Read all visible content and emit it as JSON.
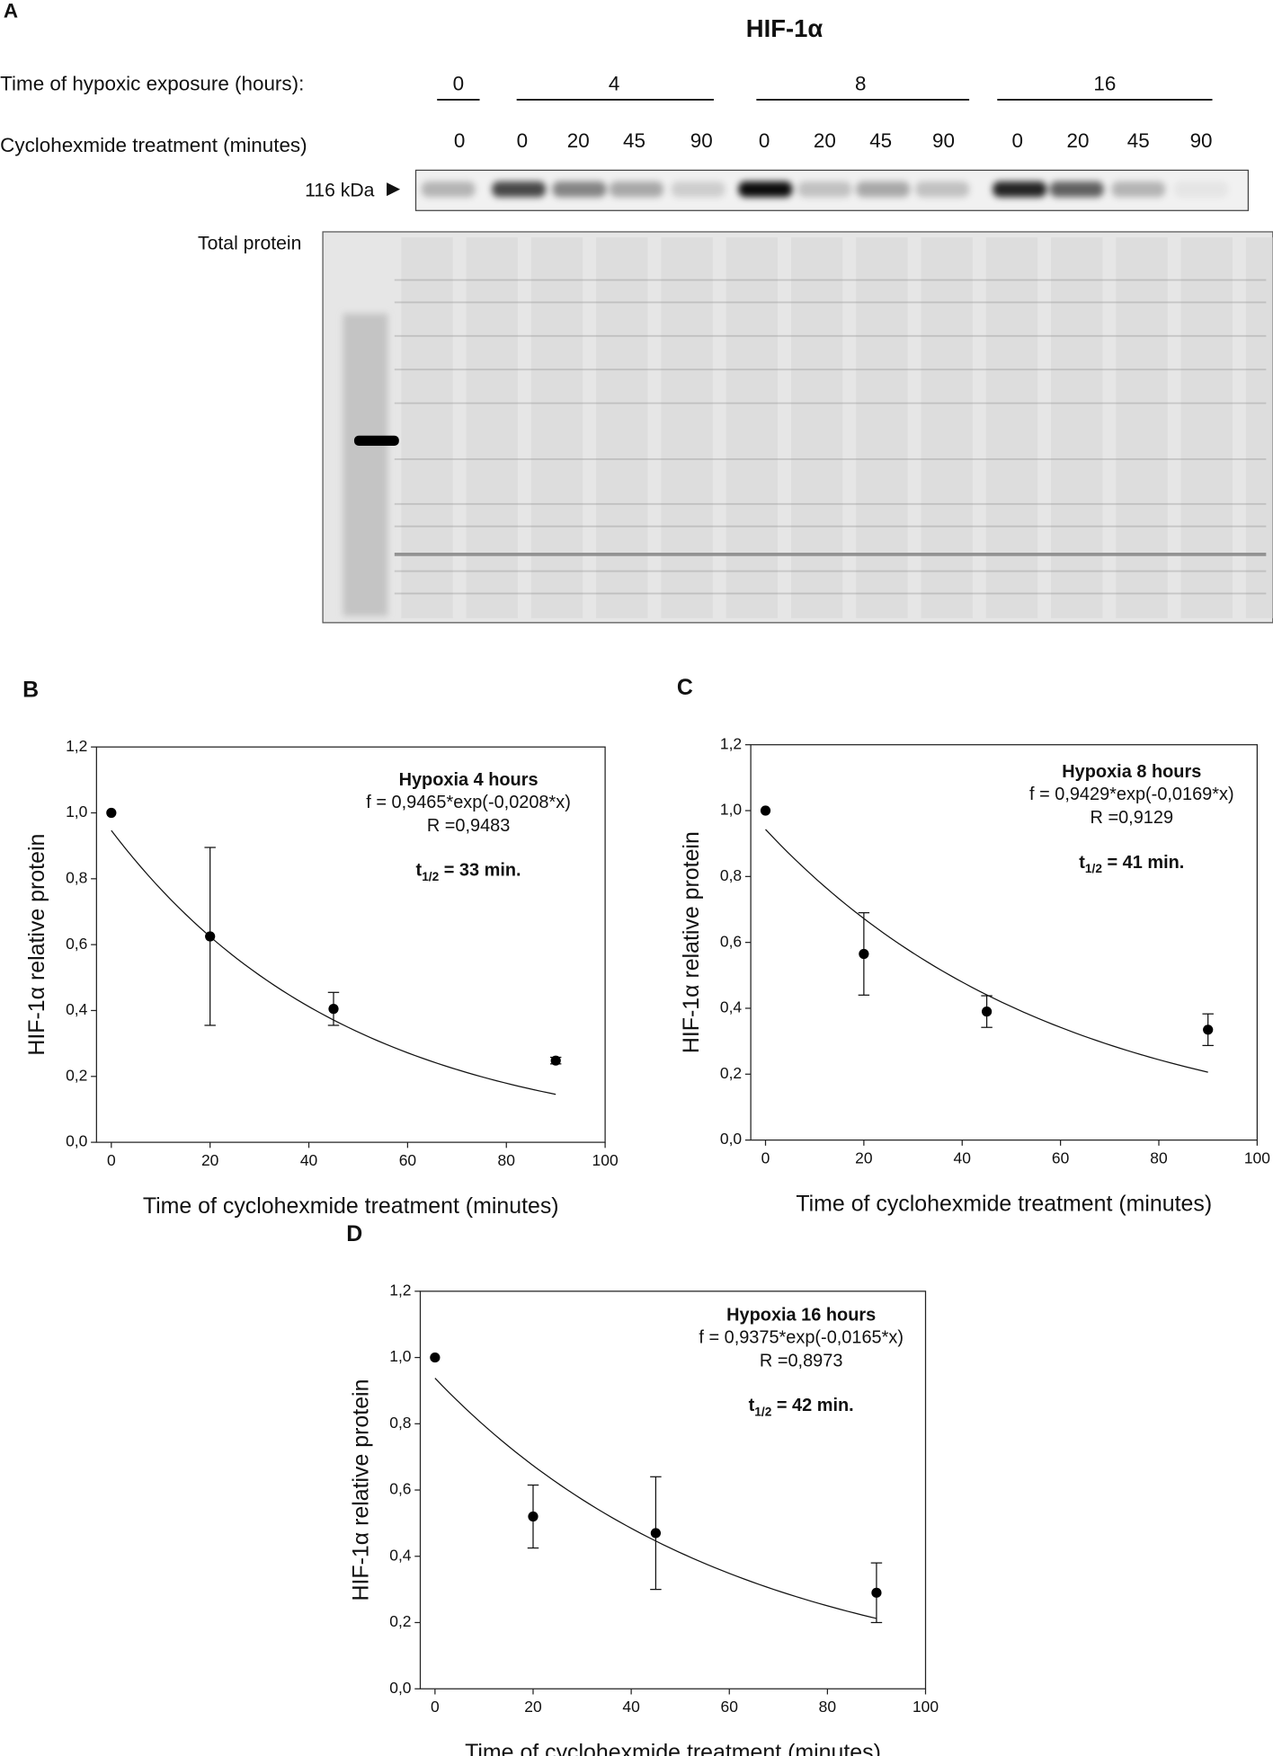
{
  "panel_a": {
    "label": "A",
    "title": "HIF-1α",
    "time_label": "Time of hypoxic exposure (hours):",
    "time_groups": [
      "0",
      "4",
      "8",
      "16"
    ],
    "chx_label": "Cyclohexmide treatment (minutes)",
    "chx_times": [
      "0",
      "0",
      "20",
      "45",
      "90",
      "0",
      "20",
      "45",
      "90",
      "0",
      "20",
      "45",
      "90"
    ],
    "marker": "116 kDa",
    "total_label": "Total protein"
  },
  "chart_data": [
    {
      "type": "scatter",
      "panel": "B",
      "xlabel": "Time of cyclohexmide treatment (minutes)",
      "ylabel": "HIF-1α relative protein",
      "xlim": [
        -3,
        100
      ],
      "ylim": [
        0,
        1.2
      ],
      "xticks": [
        0,
        20,
        40,
        60,
        80,
        100
      ],
      "yticks": [
        {
          "value": 0,
          "label": "0,0"
        },
        {
          "value": 0.2,
          "label": "0,2"
        },
        {
          "value": 0.4,
          "label": "0,4"
        },
        {
          "value": 0.6,
          "label": "0,6"
        },
        {
          "value": 0.8,
          "label": "0,8"
        },
        {
          "value": 1.0,
          "label": "1,0"
        },
        {
          "value": 1.2,
          "label": "1,2"
        }
      ],
      "x": [
        0,
        20,
        45,
        90
      ],
      "values": [
        1.0,
        0.625,
        0.405,
        0.248
      ],
      "errors": [
        null,
        0.27,
        0.05,
        0.01
      ],
      "color": "#000000",
      "fit": {
        "equation": "f = 0,9465*exp(-0,0208*x)",
        "a": 0.9465,
        "b": -0.0208
      },
      "annotation": {
        "title": "Hypoxia 4 hours",
        "r": "R =0,9483",
        "t_symbol": "t",
        "t_sub": "1/2",
        "t_text": " = 33 min."
      }
    },
    {
      "type": "scatter",
      "panel": "C",
      "xlabel": "Time of cyclohexmide treatment (minutes)",
      "ylabel": "HIF-1α relative protein",
      "xlim": [
        -3,
        100
      ],
      "ylim": [
        0,
        1.2
      ],
      "xticks": [
        0,
        20,
        40,
        60,
        80,
        100
      ],
      "yticks": [
        {
          "value": 0,
          "label": "0,0"
        },
        {
          "value": 0.2,
          "label": "0,2"
        },
        {
          "value": 0.4,
          "label": "0,4"
        },
        {
          "value": 0.6,
          "label": "0,6"
        },
        {
          "value": 0.8,
          "label": "0,8"
        },
        {
          "value": 1.0,
          "label": "1,0"
        },
        {
          "value": 1.2,
          "label": "1,2"
        }
      ],
      "x": [
        0,
        20,
        45,
        90
      ],
      "values": [
        1.0,
        0.565,
        0.39,
        0.335
      ],
      "errors": [
        null,
        0.125,
        0.048,
        0.048
      ],
      "color": "#000000",
      "fit": {
        "equation": "f = 0,9429*exp(-0,0169*x)",
        "a": 0.9429,
        "b": -0.0169
      },
      "annotation": {
        "title": "Hypoxia 8 hours",
        "r": "R =0,9129",
        "t_symbol": "t",
        "t_sub": "1/2",
        "t_text": " = 41 min."
      }
    },
    {
      "type": "scatter",
      "panel": "D",
      "xlabel": "Time of cyclohexmide treatment (minutes)",
      "ylabel": "HIF-1α relative protein",
      "xlim": [
        -3,
        100
      ],
      "ylim": [
        0,
        1.2
      ],
      "xticks": [
        0,
        20,
        40,
        60,
        80,
        100
      ],
      "yticks": [
        {
          "value": 0,
          "label": "0,0"
        },
        {
          "value": 0.2,
          "label": "0,2"
        },
        {
          "value": 0.4,
          "label": "0,4"
        },
        {
          "value": 0.6,
          "label": "0,6"
        },
        {
          "value": 0.8,
          "label": "0,8"
        },
        {
          "value": 1.0,
          "label": "1,0"
        },
        {
          "value": 1.2,
          "label": "1,2"
        }
      ],
      "x": [
        0,
        20,
        45,
        90
      ],
      "values": [
        1.0,
        0.52,
        0.47,
        0.29
      ],
      "errors": [
        null,
        0.095,
        0.17,
        0.09
      ],
      "color": "#000000",
      "fit": {
        "equation": "f = 0,9375*exp(-0,0165*x)",
        "a": 0.9375,
        "b": -0.0165
      },
      "annotation": {
        "title": "Hypoxia 16 hours",
        "r": "R =0,8973",
        "t_symbol": "t",
        "t_sub": "1/2",
        "t_text": " = 42 min."
      }
    }
  ]
}
